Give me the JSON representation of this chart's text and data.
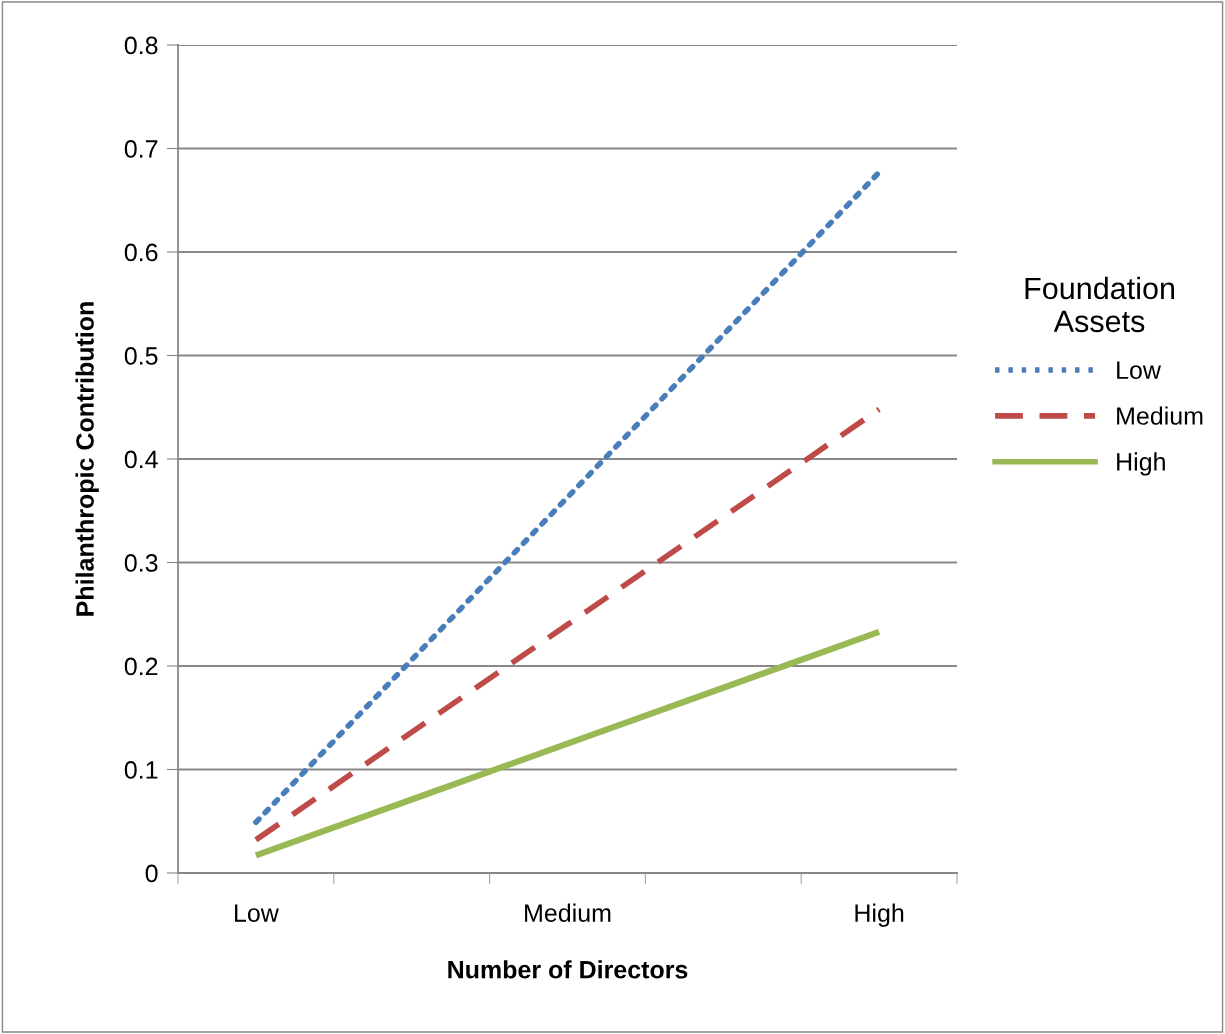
{
  "chart_data": {
    "type": "line",
    "xlabel": "Number of Directors",
    "ylabel": "Philanthropic Contribution",
    "legend_title": "Foundation Assets",
    "categories": [
      "Low",
      null,
      "Medium",
      null,
      "High"
    ],
    "series": [
      {
        "name": "Low",
        "color": "#4a7ebb",
        "line_style": "dotted",
        "values": [
          0.049,
          0.206,
          0.363,
          0.52,
          0.677
        ]
      },
      {
        "name": "Medium",
        "color": "#be4b48",
        "line_style": "dashed",
        "values": [
          0.032,
          0.136,
          0.24,
          0.344,
          0.448
        ]
      },
      {
        "name": "High",
        "color": "#98b954",
        "line_style": "solid",
        "values": [
          0.017,
          0.071,
          0.125,
          0.179,
          0.233
        ]
      }
    ],
    "ylim": [
      0,
      0.8
    ],
    "yticks": [
      0,
      0.1,
      0.2,
      0.3,
      0.4,
      0.5,
      0.6,
      0.7,
      0.8
    ],
    "grid": "y",
    "legend": "right",
    "marker": "none"
  }
}
